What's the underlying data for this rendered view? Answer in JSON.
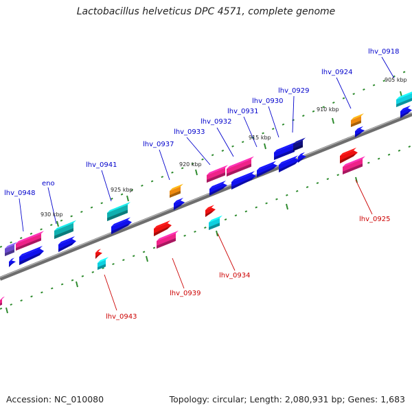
{
  "title": "Lactobacillus helveticus DPC 4571, complete genome",
  "footer": {
    "accession": "Accession: NC_010080",
    "summary": "Topology: circular; Length: 2,080,931 bp; Genes: 1,683"
  },
  "colors": {
    "backbone": "#7a7a7a",
    "tick": "#2e8b2e",
    "label_forward": "#0000cc",
    "label_reverse": "#cc0000"
  },
  "scale_ticks": [
    "930 kbp",
    "925 kbp",
    "920 kbp",
    "915 kbp",
    "910 kbp",
    "905 kbp"
  ],
  "labels_forward": [
    "lhv_0948",
    "eno",
    "lhv_0941",
    "lhv_0937",
    "lhv_0933",
    "lhv_0932",
    "lhv_0931",
    "lhv_0930",
    "lhv_0929",
    "lhv_0924",
    "lhv_0918"
  ],
  "labels_reverse": [
    "lhv_0943",
    "lhv_0939",
    "lhv_0934",
    "lhv_0925"
  ]
}
